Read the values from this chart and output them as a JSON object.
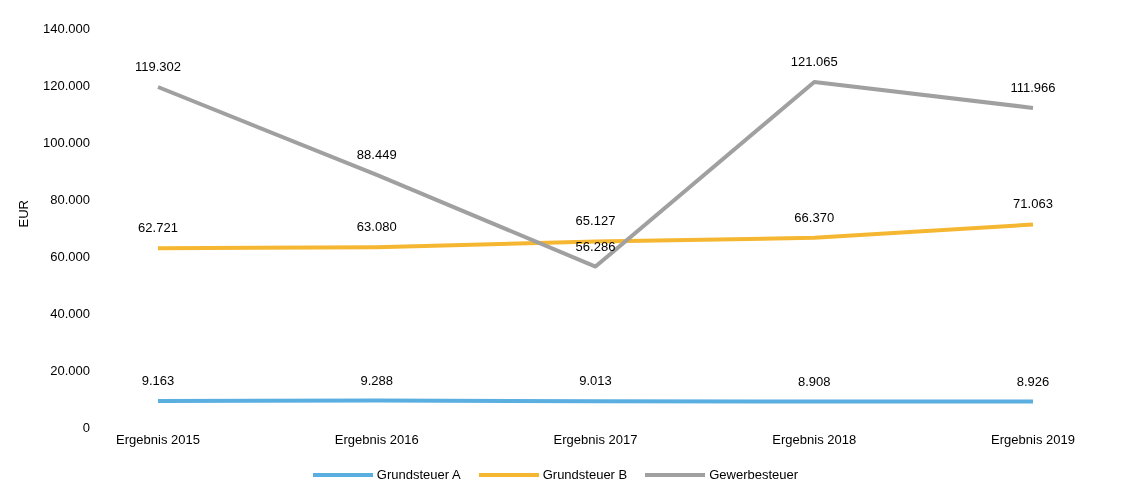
{
  "chart_data": {
    "type": "line",
    "ylabel": "EUR",
    "categories": [
      "Ergebnis 2015",
      "Ergebnis 2016",
      "Ergebnis 2017",
      "Ergebnis 2018",
      "Ergebnis 2019"
    ],
    "series": [
      {
        "name": "Grundsteuer A",
        "color": "#5aaee0",
        "values": [
          9163,
          9288,
          9013,
          8908,
          8926
        ],
        "value_labels": [
          "9.163",
          "9.288",
          "9.013",
          "8.908",
          "8.926"
        ]
      },
      {
        "name": "Grundsteuer B",
        "color": "#f5b731",
        "values": [
          62721,
          63080,
          65127,
          66370,
          71063
        ],
        "value_labels": [
          "62.721",
          "63.080",
          "65.127",
          "66.370",
          "71.063"
        ]
      },
      {
        "name": "Gewerbesteuer",
        "color": "#a0a0a0",
        "values": [
          119302,
          88449,
          56286,
          121065,
          111966
        ],
        "value_labels": [
          "119.302",
          "88.449",
          "56.286",
          "121.065",
          "111.966"
        ]
      }
    ],
    "ylim": [
      0,
      140000
    ],
    "yticks": [
      0,
      {
        "value": 20000,
        "label": "20.000"
      },
      {
        "value": 40000,
        "label": "40.000"
      },
      {
        "value": 60000,
        "label": "60.000"
      },
      {
        "value": 80000,
        "label": "80.000"
      },
      {
        "value": 100000,
        "label": "100.000"
      },
      {
        "value": 120000,
        "label": "120.000"
      },
      {
        "value": 140000,
        "label": "140.000"
      }
    ],
    "grid": false,
    "legend": "bottom",
    "marker": "none",
    "line_style": "solid"
  }
}
